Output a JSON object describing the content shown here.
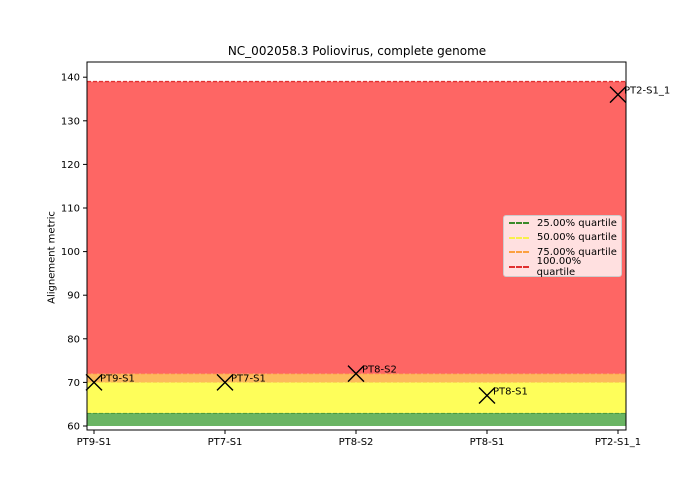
{
  "chart_data": {
    "type": "scatter",
    "title": "NC_002058.3 Poliovirus, complete genome",
    "xlabel": "",
    "ylabel": "Alignement metric",
    "ylim": [
      59.5,
      143.5
    ],
    "yticks": [
      60,
      70,
      80,
      90,
      100,
      110,
      120,
      130,
      140
    ],
    "categories": [
      "PT9-S1",
      "PT7-S1",
      "PT8-S2",
      "PT8-S1",
      "PT2-S1_1"
    ],
    "values": [
      70,
      70,
      72,
      67,
      136
    ],
    "bands": [
      {
        "name": "25.00% quartile",
        "from": 60,
        "to": 63,
        "color": "#6ab563",
        "line": "#3a8a2a"
      },
      {
        "name": "50.00% quartile",
        "from": 63,
        "to": 70,
        "color": "#fefe5a",
        "line": "#f8f04a"
      },
      {
        "name": "75.00% quartile",
        "from": 70,
        "to": 72,
        "color": "#fdb95c",
        "line": "#fca040"
      },
      {
        "name": "100.00% quartile",
        "from": 72,
        "to": 139,
        "color": "#fe6664",
        "line": "#e03030"
      }
    ],
    "legend_position": "center right"
  }
}
